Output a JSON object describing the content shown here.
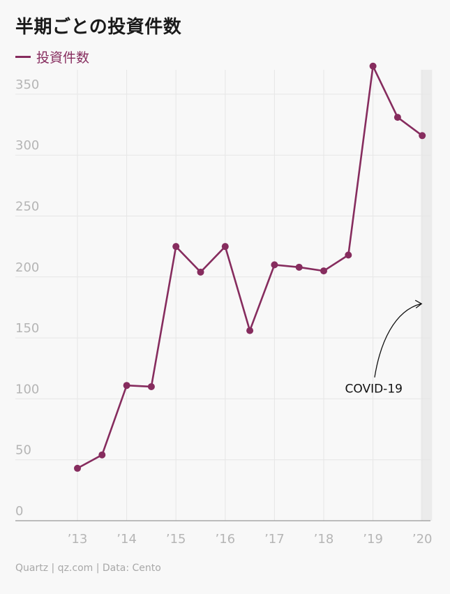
{
  "title": "半期ごとの投資件数",
  "footer": "Quartz | qz.com | Data: Cento",
  "colors": {
    "series": "#862c5e",
    "grid": "#e6e6e6",
    "axis": "#999999",
    "highlight": "#ebebeb"
  },
  "chart_data": {
    "type": "line",
    "title": "半期ごとの投資件数",
    "xlabel": "",
    "ylabel": "",
    "ylim": [
      0,
      370
    ],
    "xlim": [
      2012.0,
      2020.2
    ],
    "y_ticks": [
      0,
      50,
      100,
      150,
      200,
      250,
      300,
      350
    ],
    "x_ticks": [
      2013,
      2014,
      2015,
      2016,
      2017,
      2018,
      2019,
      2020
    ],
    "x_tick_labels": [
      "’13",
      "’14",
      "’15",
      "’16",
      "’17",
      "’18",
      "’19",
      "’20"
    ],
    "grid": "both",
    "legend": "top-left",
    "highlight_range": [
      2020,
      2020.2
    ],
    "series": [
      {
        "name": "投資件数",
        "color": "#862c5e",
        "x": [
          2013,
          2013.5,
          2014,
          2014.5,
          2015,
          2015.5,
          2016,
          2016.5,
          2017,
          2017.5,
          2018,
          2018.5,
          2019,
          2019.5,
          2020
        ],
        "y": [
          43,
          54,
          111,
          110,
          225,
          204,
          225,
          156,
          210,
          208,
          205,
          218,
          373,
          331,
          316
        ]
      }
    ],
    "annotations": [
      {
        "text": "COVID-19",
        "x": 2019.6,
        "y": 105,
        "arrow_to": [
          2020,
          178
        ]
      }
    ]
  }
}
